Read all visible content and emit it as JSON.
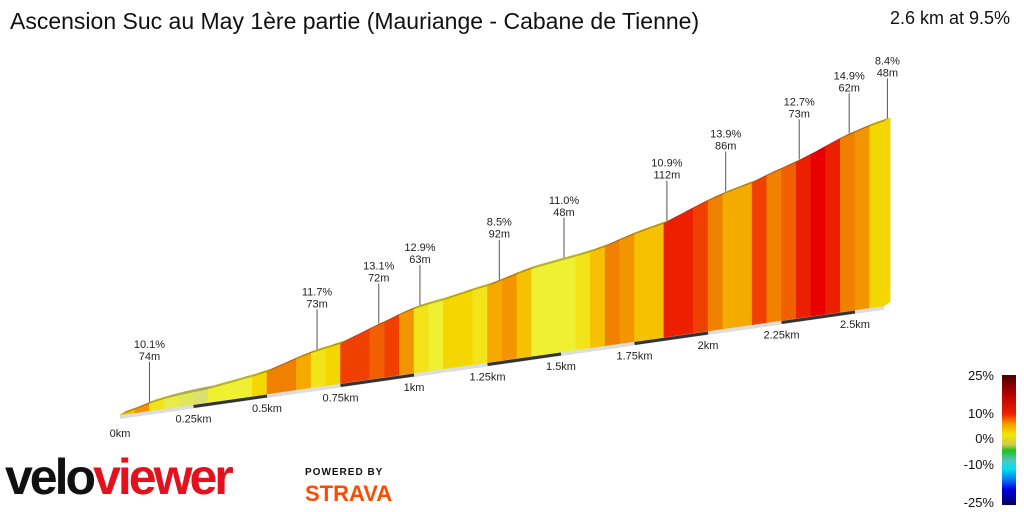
{
  "header": {
    "title": "Ascension Suc au May 1ère partie (Mauriange - Cabane de Tienne)",
    "summary": "2.6 km at 9.5%"
  },
  "chart_data": {
    "type": "area",
    "title": "Ascension Suc au May 1ère partie (Mauriange - Cabane de Tienne)",
    "xlabel": "",
    "ylabel": "",
    "segment_length_km": 0.05,
    "gradients_pct": [
      8,
      10,
      6,
      4,
      3,
      2,
      5,
      5,
      5,
      7,
      11,
      11,
      9,
      6,
      7,
      13,
      13,
      12,
      13,
      10,
      6,
      5,
      7,
      7,
      6,
      9,
      10,
      8,
      5,
      5,
      5,
      6,
      8,
      11,
      10,
      8,
      8,
      14,
      14,
      13,
      11,
      9,
      9,
      13,
      11,
      12,
      14,
      15,
      14,
      11,
      10,
      7
    ],
    "x_ticks": [
      {
        "km": 0,
        "label": "0km"
      },
      {
        "km": 0.25,
        "label": "0.25km"
      },
      {
        "km": 0.5,
        "label": "0.5km"
      },
      {
        "km": 0.75,
        "label": "0.75km"
      },
      {
        "km": 1,
        "label": "1km"
      },
      {
        "km": 1.25,
        "label": "1.25km"
      },
      {
        "km": 1.5,
        "label": "1.5km"
      },
      {
        "km": 1.75,
        "label": "1.75km"
      },
      {
        "km": 2,
        "label": "2km"
      },
      {
        "km": 2.25,
        "label": "2.25km"
      },
      {
        "km": 2.5,
        "label": "2.5km"
      }
    ],
    "annotations": [
      {
        "km": 0.09,
        "grade": "10.1%",
        "length": "74m"
      },
      {
        "km": 0.66,
        "grade": "11.7%",
        "length": "73m"
      },
      {
        "km": 0.87,
        "grade": "13.1%",
        "length": "72m"
      },
      {
        "km": 1.01,
        "grade": "12.9%",
        "length": "63m"
      },
      {
        "km": 1.28,
        "grade": "8.5%",
        "length": "92m"
      },
      {
        "km": 1.5,
        "grade": "11.0%",
        "length": "48m"
      },
      {
        "km": 1.85,
        "grade": "10.9%",
        "length": "112m"
      },
      {
        "km": 2.05,
        "grade": "13.9%",
        "length": "86m"
      },
      {
        "km": 2.3,
        "grade": "12.7%",
        "length": "73m"
      },
      {
        "km": 2.47,
        "grade": "14.9%",
        "length": "62m"
      },
      {
        "km": 2.6,
        "grade": "8.4%",
        "length": "48m"
      }
    ],
    "legend": {
      "title": "",
      "labels": [
        "25%",
        "10%",
        "0%",
        "-10%",
        "-25%"
      ]
    }
  },
  "branding": {
    "logo_a": "velo",
    "logo_b": "viewer",
    "powered_by": "POWERED BY",
    "strava": "STRAVA"
  }
}
